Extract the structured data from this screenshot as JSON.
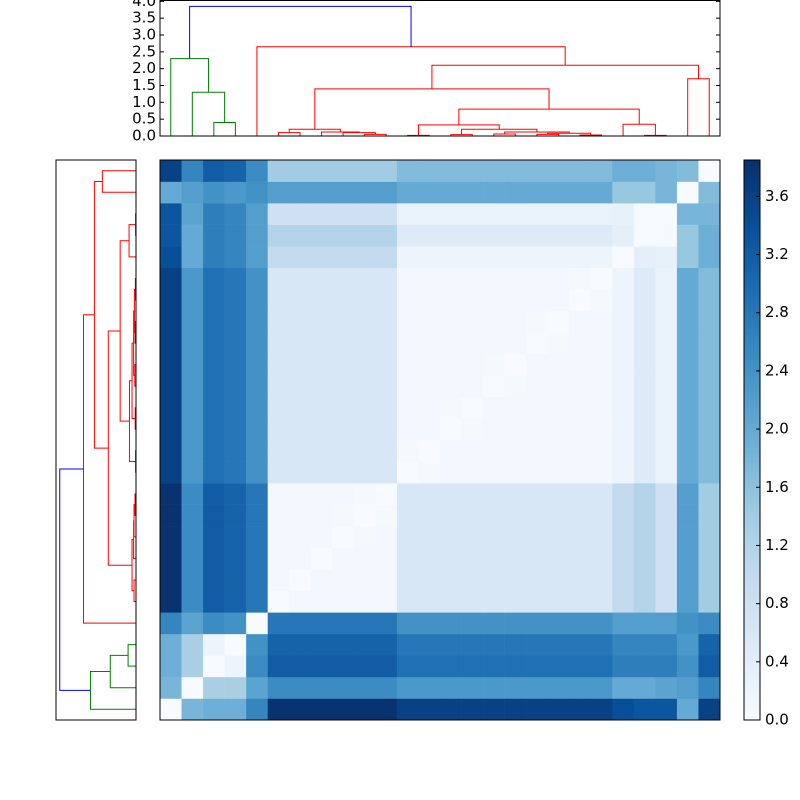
{
  "chart_data": {
    "type": "clustermap",
    "colormap": "Blues",
    "matrix": [
      [
        0,
        1.8,
        1.9,
        1.9,
        2.6,
        3.8,
        3.8,
        3.8,
        3.8,
        3.8,
        3.8,
        3.6,
        3.6,
        3.6,
        3.6,
        3.6,
        3.6,
        3.6,
        3.6,
        3.6,
        3.6,
        3.4,
        3.3,
        3.3,
        2.0,
        3.6
      ],
      [
        1.8,
        0,
        1.3,
        1.3,
        2.1,
        2.5,
        2.5,
        2.5,
        2.5,
        2.5,
        2.5,
        2.3,
        2.3,
        2.3,
        2.3,
        2.3,
        2.3,
        2.3,
        2.3,
        2.3,
        2.3,
        2.0,
        2.0,
        2.1,
        2.2,
        2.6
      ],
      [
        1.9,
        1.3,
        0,
        0.2,
        2.5,
        3.2,
        3.2,
        3.2,
        3.2,
        3.2,
        3.2,
        2.9,
        2.9,
        2.9,
        2.9,
        2.9,
        2.9,
        2.9,
        2.9,
        2.9,
        2.9,
        2.7,
        2.7,
        2.7,
        2.4,
        3.2
      ],
      [
        1.9,
        1.3,
        0.2,
        0,
        2.4,
        3.1,
        3.1,
        3.1,
        3.1,
        3.1,
        3.1,
        2.8,
        2.8,
        2.8,
        2.8,
        2.8,
        2.8,
        2.8,
        2.8,
        2.8,
        2.8,
        2.6,
        2.6,
        2.6,
        2.3,
        3.1
      ],
      [
        2.6,
        2.1,
        2.5,
        2.4,
        0,
        2.8,
        2.8,
        2.8,
        2.8,
        2.8,
        2.8,
        2.4,
        2.4,
        2.4,
        2.4,
        2.4,
        2.4,
        2.4,
        2.4,
        2.4,
        2.4,
        2.2,
        2.2,
        2.2,
        2.4,
        2.5
      ],
      [
        3.8,
        2.5,
        3.2,
        3.1,
        2.8,
        0,
        0.1,
        0.1,
        0.1,
        0.1,
        0.1,
        0.6,
        0.6,
        0.6,
        0.6,
        0.6,
        0.6,
        0.6,
        0.6,
        0.6,
        0.6,
        1.0,
        1.2,
        0.8,
        2.2,
        1.4
      ],
      [
        3.8,
        2.5,
        3.2,
        3.1,
        2.8,
        0.1,
        0,
        0.1,
        0.1,
        0.1,
        0.1,
        0.6,
        0.6,
        0.6,
        0.6,
        0.6,
        0.6,
        0.6,
        0.6,
        0.6,
        0.6,
        1.0,
        1.2,
        0.8,
        2.2,
        1.4
      ],
      [
        3.8,
        2.5,
        3.2,
        3.1,
        2.8,
        0.1,
        0.1,
        0,
        0.1,
        0.1,
        0.1,
        0.6,
        0.6,
        0.6,
        0.6,
        0.6,
        0.6,
        0.6,
        0.6,
        0.6,
        0.6,
        1.0,
        1.2,
        0.8,
        2.2,
        1.4
      ],
      [
        3.8,
        2.5,
        3.2,
        3.1,
        2.8,
        0.1,
        0.1,
        0.1,
        0,
        0.05,
        0.1,
        0.6,
        0.6,
        0.6,
        0.6,
        0.6,
        0.6,
        0.6,
        0.6,
        0.6,
        0.6,
        1.0,
        1.2,
        0.8,
        2.2,
        1.4
      ],
      [
        3.8,
        2.5,
        3.2,
        3.1,
        2.8,
        0.1,
        0.1,
        0.1,
        0.05,
        0,
        0.05,
        0.6,
        0.6,
        0.6,
        0.6,
        0.6,
        0.6,
        0.6,
        0.6,
        0.6,
        0.6,
        1.0,
        1.2,
        0.8,
        2.2,
        1.4
      ],
      [
        3.8,
        2.5,
        3.2,
        3.1,
        2.8,
        0.1,
        0.1,
        0.1,
        0.1,
        0.05,
        0,
        0.6,
        0.6,
        0.6,
        0.6,
        0.6,
        0.6,
        0.6,
        0.6,
        0.6,
        0.6,
        1.0,
        1.2,
        0.8,
        2.2,
        1.4
      ],
      [
        3.6,
        2.3,
        2.9,
        2.8,
        2.4,
        0.6,
        0.6,
        0.6,
        0.6,
        0.6,
        0.6,
        0,
        0.05,
        0.1,
        0.1,
        0.1,
        0.1,
        0.1,
        0.1,
        0.1,
        0.1,
        0.2,
        0.5,
        0.25,
        2.0,
        1.7
      ],
      [
        3.6,
        2.3,
        2.9,
        2.8,
        2.4,
        0.6,
        0.6,
        0.6,
        0.6,
        0.6,
        0.6,
        0.05,
        0,
        0.1,
        0.1,
        0.1,
        0.1,
        0.1,
        0.1,
        0.1,
        0.1,
        0.2,
        0.5,
        0.25,
        2.0,
        1.7
      ],
      [
        3.6,
        2.3,
        2.9,
        2.8,
        2.4,
        0.6,
        0.6,
        0.6,
        0.6,
        0.6,
        0.6,
        0.1,
        0.1,
        0,
        0.05,
        0.1,
        0.1,
        0.1,
        0.1,
        0.1,
        0.1,
        0.2,
        0.5,
        0.25,
        2.0,
        1.7
      ],
      [
        3.6,
        2.3,
        2.9,
        2.8,
        2.4,
        0.6,
        0.6,
        0.6,
        0.6,
        0.6,
        0.6,
        0.1,
        0.1,
        0.05,
        0,
        0.1,
        0.1,
        0.1,
        0.1,
        0.1,
        0.1,
        0.2,
        0.5,
        0.25,
        2.0,
        1.7
      ],
      [
        3.6,
        2.3,
        2.9,
        2.8,
        2.4,
        0.6,
        0.6,
        0.6,
        0.6,
        0.6,
        0.6,
        0.1,
        0.1,
        0.1,
        0.1,
        0,
        0.05,
        0.1,
        0.1,
        0.1,
        0.1,
        0.2,
        0.5,
        0.25,
        2.0,
        1.7
      ],
      [
        3.6,
        2.3,
        2.9,
        2.8,
        2.4,
        0.6,
        0.6,
        0.6,
        0.6,
        0.6,
        0.6,
        0.1,
        0.1,
        0.1,
        0.1,
        0.05,
        0,
        0.1,
        0.1,
        0.1,
        0.1,
        0.2,
        0.5,
        0.25,
        2.0,
        1.7
      ],
      [
        3.6,
        2.3,
        2.9,
        2.8,
        2.4,
        0.6,
        0.6,
        0.6,
        0.6,
        0.6,
        0.6,
        0.1,
        0.1,
        0.1,
        0.1,
        0.1,
        0.1,
        0,
        0.05,
        0.1,
        0.1,
        0.2,
        0.5,
        0.25,
        2.0,
        1.7
      ],
      [
        3.6,
        2.3,
        2.9,
        2.8,
        2.4,
        0.6,
        0.6,
        0.6,
        0.6,
        0.6,
        0.6,
        0.1,
        0.1,
        0.1,
        0.1,
        0.1,
        0.1,
        0.05,
        0,
        0.1,
        0.1,
        0.2,
        0.5,
        0.25,
        2.0,
        1.7
      ],
      [
        3.6,
        2.3,
        2.9,
        2.8,
        2.4,
        0.6,
        0.6,
        0.6,
        0.6,
        0.6,
        0.6,
        0.1,
        0.1,
        0.1,
        0.1,
        0.1,
        0.1,
        0.1,
        0.1,
        0,
        0.05,
        0.2,
        0.5,
        0.25,
        2.0,
        1.7
      ],
      [
        3.6,
        2.3,
        2.9,
        2.8,
        2.4,
        0.6,
        0.6,
        0.6,
        0.6,
        0.6,
        0.6,
        0.1,
        0.1,
        0.1,
        0.1,
        0.1,
        0.1,
        0.1,
        0.1,
        0.05,
        0,
        0.2,
        0.5,
        0.25,
        2.0,
        1.7
      ],
      [
        3.4,
        2.0,
        2.7,
        2.6,
        2.2,
        1.0,
        1.0,
        1.0,
        1.0,
        1.0,
        1.0,
        0.2,
        0.2,
        0.2,
        0.2,
        0.2,
        0.2,
        0.2,
        0.2,
        0.2,
        0.2,
        0,
        0.35,
        0.3,
        1.5,
        1.9
      ],
      [
        3.3,
        2.0,
        2.7,
        2.6,
        2.2,
        1.2,
        1.2,
        1.2,
        1.2,
        1.2,
        1.2,
        0.5,
        0.5,
        0.5,
        0.5,
        0.5,
        0.5,
        0.5,
        0.5,
        0.5,
        0.5,
        0.35,
        0,
        0.03,
        1.5,
        1.9
      ],
      [
        3.3,
        2.1,
        2.7,
        2.6,
        2.2,
        0.8,
        0.8,
        0.8,
        0.8,
        0.8,
        0.8,
        0.25,
        0.25,
        0.25,
        0.25,
        0.25,
        0.25,
        0.25,
        0.25,
        0.25,
        0.25,
        0.3,
        0.03,
        0,
        1.8,
        1.8
      ],
      [
        2.0,
        2.2,
        2.4,
        2.3,
        2.4,
        2.2,
        2.2,
        2.2,
        2.2,
        2.2,
        2.2,
        2.0,
        2.0,
        2.0,
        2.0,
        2.0,
        2.0,
        2.0,
        2.0,
        2.0,
        2.0,
        1.5,
        1.5,
        1.8,
        0,
        1.7
      ],
      [
        3.6,
        2.6,
        3.2,
        3.1,
        2.5,
        1.4,
        1.4,
        1.4,
        1.4,
        1.4,
        1.4,
        1.7,
        1.7,
        1.7,
        1.7,
        1.7,
        1.7,
        1.7,
        1.7,
        1.7,
        1.7,
        1.9,
        1.9,
        1.8,
        1.7,
        0
      ]
    ],
    "linkage": [
      {
        "children": [
          2,
          3
        ],
        "height": 0.4,
        "color": "#008000"
      },
      {
        "children": [
          1,
          26
        ],
        "height": 1.3,
        "color": "#008000"
      },
      {
        "children": [
          0,
          27
        ],
        "height": 2.3,
        "color": "#008000"
      },
      {
        "children": [
          5,
          6
        ],
        "height": 0.1,
        "color": "#ff0000"
      },
      {
        "children": [
          9,
          10
        ],
        "height": 0.05,
        "color": "#ff0000"
      },
      {
        "children": [
          8,
          30
        ],
        "height": 0.1,
        "color": "#ff0000"
      },
      {
        "children": [
          7,
          31
        ],
        "height": 0.12,
        "color": "#ff0000"
      },
      {
        "children": [
          29,
          32
        ],
        "height": 0.2,
        "color": "#ff0000"
      },
      {
        "children": [
          11,
          12
        ],
        "height": 0.02,
        "color": "#ff0000"
      },
      {
        "children": [
          13,
          14
        ],
        "height": 0.04,
        "color": "#ff0000"
      },
      {
        "children": [
          15,
          16
        ],
        "height": 0.06,
        "color": "#ff0000"
      },
      {
        "children": [
          17,
          18
        ],
        "height": 0.05,
        "color": "#ff0000"
      },
      {
        "children": [
          19,
          20
        ],
        "height": 0.03,
        "color": "#ff0000"
      },
      {
        "children": [
          37,
          38
        ],
        "height": 0.08,
        "color": "#ff0000"
      },
      {
        "children": [
          36,
          39
        ],
        "height": 0.12,
        "color": "#ff0000"
      },
      {
        "children": [
          35,
          40
        ],
        "height": 0.2,
        "color": "#ff0000"
      },
      {
        "children": [
          34,
          41
        ],
        "height": 0.33,
        "color": "#ff0000"
      },
      {
        "children": [
          22,
          23
        ],
        "height": 0.02,
        "color": "#ff0000"
      },
      {
        "children": [
          21,
          43
        ],
        "height": 0.35,
        "color": "#ff0000"
      },
      {
        "children": [
          42,
          44
        ],
        "height": 0.8,
        "color": "#ff0000"
      },
      {
        "children": [
          33,
          45
        ],
        "height": 1.4,
        "color": "#ff0000"
      },
      {
        "children": [
          24,
          25
        ],
        "height": 1.7,
        "color": "#ff0000"
      },
      {
        "children": [
          46,
          47
        ],
        "height": 2.1,
        "color": "#ff0000"
      },
      {
        "children": [
          4,
          48
        ],
        "height": 2.65,
        "color": "#ff0000"
      },
      {
        "children": [
          28,
          49
        ],
        "height": 3.85,
        "color": "#0000ff"
      }
    ],
    "dendrogram_ylim": [
      0,
      4.04
    ],
    "dendrogram_yticks": [
      {
        "value": 0,
        "label": "0.0"
      },
      {
        "value": 0.5,
        "label": "0.5"
      },
      {
        "value": 1,
        "label": "1.0"
      },
      {
        "value": 1.5,
        "label": "1.5"
      },
      {
        "value": 2,
        "label": "2.0"
      },
      {
        "value": 2.5,
        "label": "2.5"
      },
      {
        "value": 3,
        "label": "3.0"
      },
      {
        "value": 3.5,
        "label": "3.5"
      },
      {
        "value": 4,
        "label": "4.0"
      }
    ],
    "clim": [
      0,
      3.85
    ],
    "colorbar_ticks": [
      {
        "value": 0,
        "label": "0.0"
      },
      {
        "value": 0.4,
        "label": "0.4"
      },
      {
        "value": 0.8,
        "label": "0.8"
      },
      {
        "value": 1.2,
        "label": "1.2"
      },
      {
        "value": 1.6,
        "label": "1.6"
      },
      {
        "value": 2,
        "label": "2.0"
      },
      {
        "value": 2.4,
        "label": "2.4"
      },
      {
        "value": 2.8,
        "label": "2.8"
      },
      {
        "value": 3.2,
        "label": "3.2"
      },
      {
        "value": 3.6,
        "label": "3.6"
      }
    ]
  }
}
